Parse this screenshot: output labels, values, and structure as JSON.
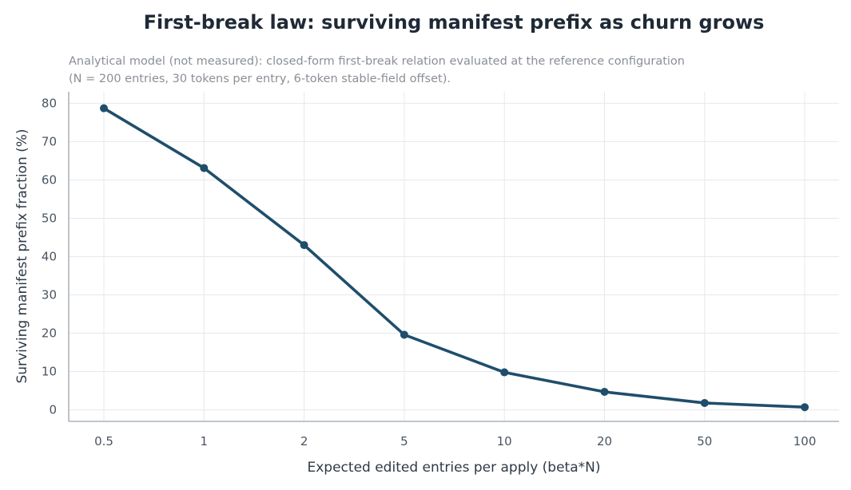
{
  "chart_data": {
    "type": "line",
    "title": "First-break law: surviving manifest prefix as churn grows",
    "subtitle_lines": [
      "Analytical model (not measured): closed-form first-break relation evaluated at the reference configuration",
      "(N = 200 entries, 30 tokens per entry, 6-token stable-field offset)."
    ],
    "xlabel": "Expected edited entries per apply (beta*N)",
    "ylabel": "Surviving manifest prefix fraction (%)",
    "categories": [
      "0.5",
      "1",
      "2",
      "5",
      "10",
      "20",
      "50",
      "100"
    ],
    "series": [
      {
        "values": [
          78.7,
          63.1,
          43.0,
          19.6,
          9.8,
          4.7,
          1.8,
          0.7
        ]
      }
    ],
    "ylim": [
      -3,
      83
    ],
    "yticks": [
      0,
      10,
      20,
      30,
      40,
      50,
      60,
      70,
      80
    ],
    "grid": true,
    "colors": {
      "line": "#1f4e6b"
    }
  }
}
